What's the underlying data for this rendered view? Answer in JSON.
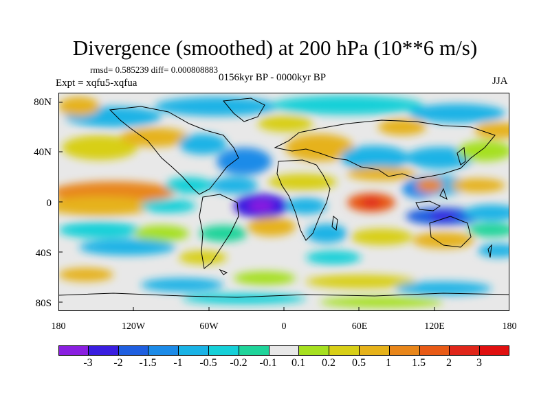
{
  "title": "Divergence (smoothed) at 200 hPa (10**6 m/s)",
  "stats": "rmsd= 0.585239 diff= 0.000808883",
  "experiment": "Expt = xqfu5-xqfua",
  "period": "0156kyr BP - 0000kyr BP",
  "season": "JJA",
  "lat_labels": [
    "80N",
    "40N",
    "0",
    "40S",
    "80S"
  ],
  "lon_labels": [
    "180",
    "120W",
    "60W",
    "0",
    "60E",
    "120E",
    "180"
  ],
  "colorbar": {
    "labels": [
      "-3",
      "-2",
      "-1.5",
      "-1",
      "-0.5",
      "-0.2",
      "-0.1",
      "0.1",
      "0.2",
      "0.5",
      "1",
      "1.5",
      "2",
      "3"
    ],
    "colors": [
      "#8a1fe0",
      "#3a1ee0",
      "#1f5fe0",
      "#1c8be8",
      "#1ab3e6",
      "#16d0d8",
      "#1fd49a",
      "#e8e8e8",
      "#a6e020",
      "#d8cf17",
      "#e6b21a",
      "#e8861a",
      "#e85a16",
      "#e0261a",
      "#e01010"
    ]
  },
  "palette": {
    "land_outline": "#000000",
    "no_data": "#e8e8e8"
  }
}
